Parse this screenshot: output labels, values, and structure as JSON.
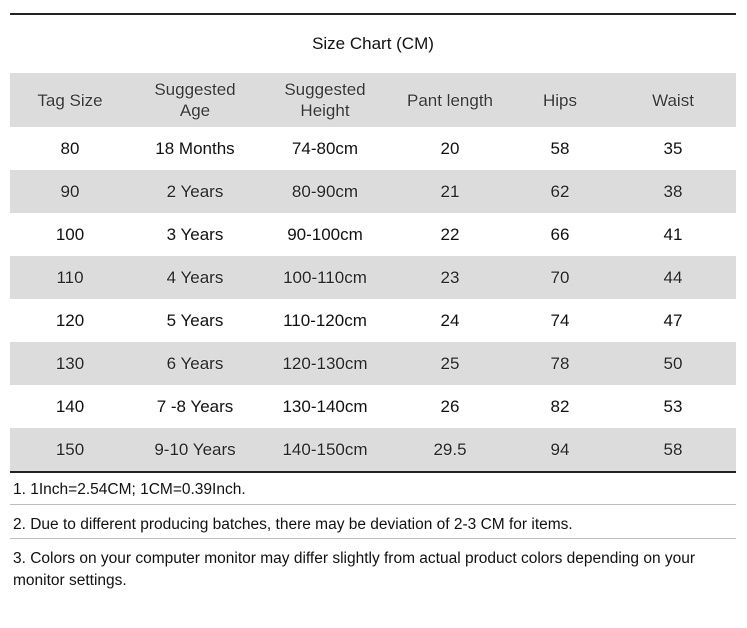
{
  "title": "Size Chart (CM)",
  "columns": [
    "Tag Size",
    "Suggested\nAge",
    "Suggested\nHeight",
    "Pant length",
    "Hips",
    "Waist"
  ],
  "rows": [
    [
      "80",
      "18 Months",
      "74-80cm",
      "20",
      "58",
      "35"
    ],
    [
      "90",
      "2 Years",
      "80-90cm",
      "21",
      "62",
      "38"
    ],
    [
      "100",
      "3 Years",
      "90-100cm",
      "22",
      "66",
      "41"
    ],
    [
      "110",
      "4 Years",
      "100-110cm",
      "23",
      "70",
      "44"
    ],
    [
      "120",
      "5 Years",
      "110-120cm",
      "24",
      "74",
      "47"
    ],
    [
      "130",
      "6 Years",
      "120-130cm",
      "25",
      "78",
      "50"
    ],
    [
      "140",
      "7 -8 Years",
      "130-140cm",
      "26",
      "82",
      "53"
    ],
    [
      "150",
      "9-10 Years",
      "140-150cm",
      "29.5",
      "94",
      "58"
    ]
  ],
  "notes": [
    "1. 1Inch=2.54CM; 1CM=0.39Inch.",
    "2. Due to different producing batches, there may be deviation of 2-3 CM for items.",
    "3. Colors on your computer monitor may differ slightly from actual product colors depending on your monitor settings."
  ]
}
